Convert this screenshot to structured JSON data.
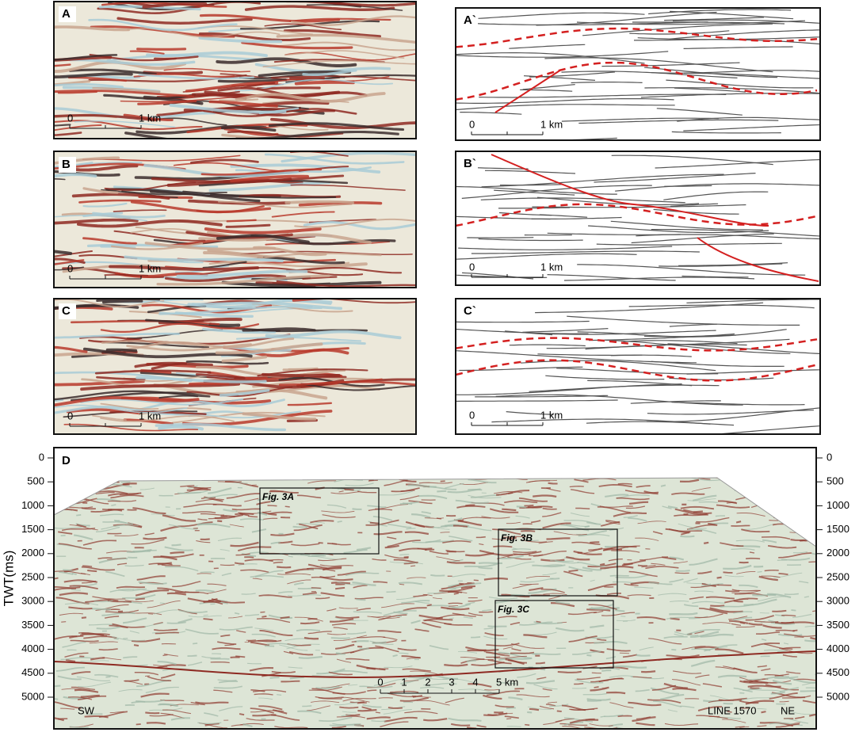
{
  "panels": [
    {
      "label": "A",
      "scale_start": "0",
      "scale_end": "1 km"
    },
    {
      "label": "B",
      "scale_start": "0",
      "scale_end": "1 km"
    },
    {
      "label": "C",
      "scale_start": "0",
      "scale_end": "1 km"
    }
  ],
  "interpretations": [
    {
      "label": "A`",
      "scale_start": "0",
      "scale_end": "1 km"
    },
    {
      "label": "B`",
      "scale_start": "0",
      "scale_end": "1 km"
    },
    {
      "label": "C`",
      "scale_start": "0",
      "scale_end": "1 km"
    }
  ],
  "section": {
    "label": "D",
    "axis_title": "TWT(ms)",
    "left_ticks": [
      "0",
      "500",
      "1000",
      "1500",
      "2000",
      "2500",
      "3000",
      "3500",
      "4000",
      "4500",
      "5000"
    ],
    "right_ticks": [
      "0",
      "500",
      "1000",
      "1500",
      "2000",
      "2500",
      "3000",
      "3500",
      "4000",
      "4500",
      "5000"
    ],
    "scale_ticks": [
      "0",
      "1",
      "2",
      "3",
      "4"
    ],
    "scale_end": "5 km",
    "boxes": [
      "Fig. 3A",
      "Fig. 3B",
      "Fig. 3C"
    ],
    "left_end": "SW",
    "line_name": "LINE 1570",
    "right_end": "NE"
  }
}
